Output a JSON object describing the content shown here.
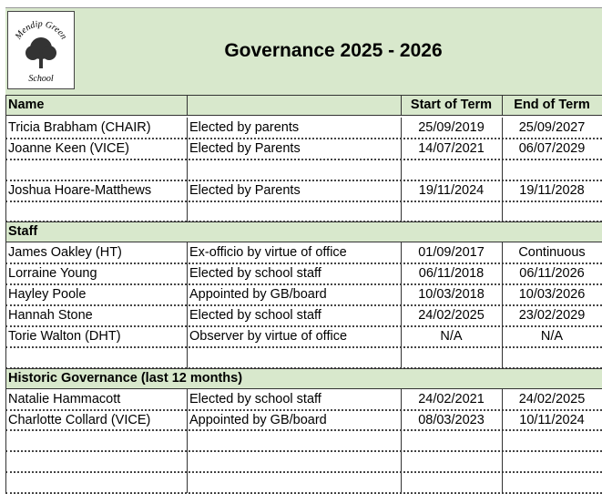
{
  "header": {
    "title": "Governance 2025 - 2026",
    "logo": {
      "top": "Mendip Green",
      "bottom": "School"
    }
  },
  "table": {
    "columns": {
      "name": "Name",
      "start": "Start of Term",
      "end": "End of Term"
    },
    "sections": [
      {
        "rows": [
          [
            "Tricia Brabham (CHAIR)",
            "Elected by parents",
            "25/09/2019",
            "25/09/2027"
          ],
          [
            "Joanne Keen (VICE)",
            "Elected by Parents",
            "14/07/2021",
            "06/07/2029"
          ],
          null,
          [
            "Joshua Hoare-Matthews",
            "Elected by Parents",
            "19/11/2024",
            "19/11/2028"
          ],
          null
        ]
      },
      {
        "title": "Staff",
        "rows": [
          [
            "James Oakley (HT)",
            "Ex-officio by virtue of office",
            "01/09/2017",
            "Continuous"
          ],
          [
            "Lorraine Young",
            "Elected by school staff",
            "06/11/2018",
            "06/11/2026"
          ],
          [
            "Hayley Poole",
            "Appointed by GB/board",
            "10/03/2018",
            "10/03/2026"
          ],
          [
            "Hannah Stone",
            "Elected by school staff",
            "24/02/2025",
            "23/02/2029"
          ],
          [
            "Torie Walton (DHT)",
            "Observer by virtue of office",
            "N/A",
            "N/A"
          ],
          null
        ]
      },
      {
        "title": "Historic Governance (last 12 months)",
        "rows": [
          [
            "Natalie Hammacott",
            "Elected by school staff",
            "24/02/2021",
            "24/02/2025"
          ],
          [
            "Charlotte Collard (VICE)",
            "Appointed by GB/board",
            "08/03/2023",
            "10/11/2024"
          ],
          null,
          null,
          null
        ]
      }
    ]
  }
}
